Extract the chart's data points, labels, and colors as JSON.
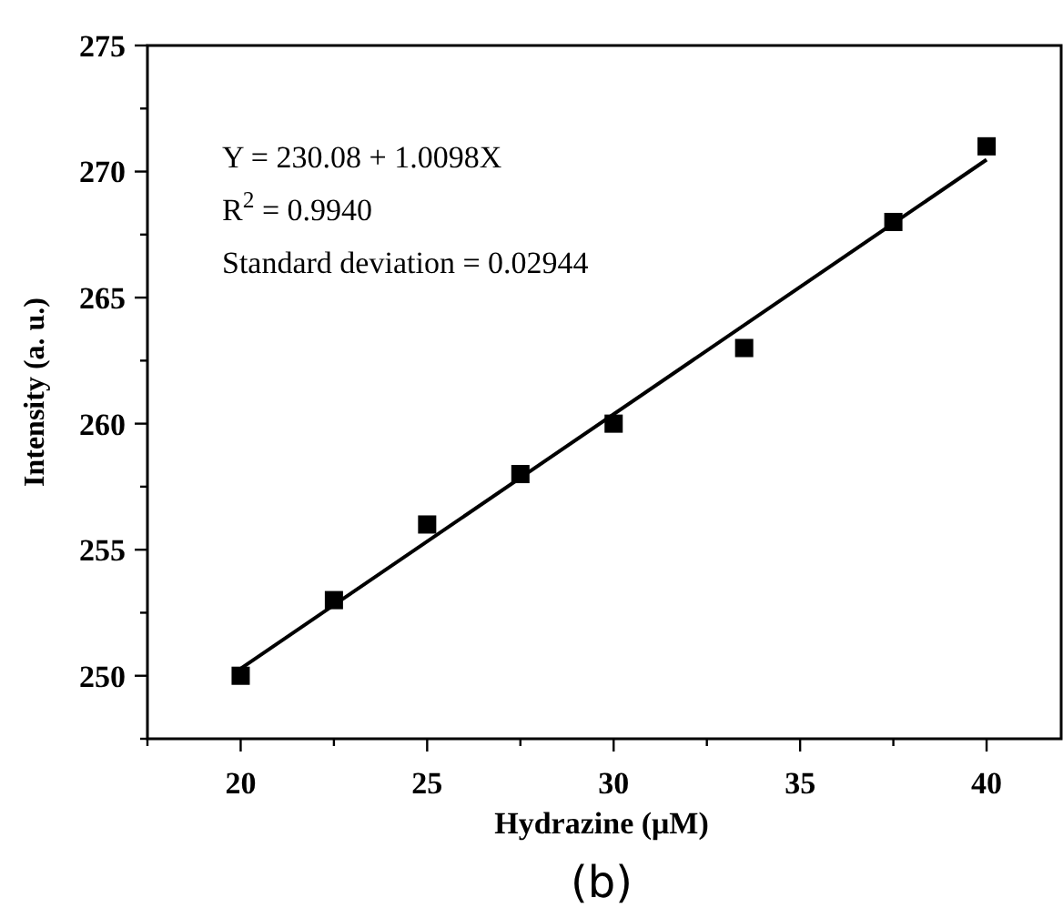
{
  "chart_data": {
    "type": "scatter",
    "xlabel": "Hydrazine (μM)",
    "ylabel": "Intensity (a. u.)",
    "xlim": [
      17.5,
      42
    ],
    "ylim": [
      247.5,
      275
    ],
    "xticks": [
      {
        "value": 17.5,
        "label": null
      },
      20,
      {
        "value": 22.5,
        "label": null
      },
      25,
      {
        "value": 27.5,
        "label": null
      },
      30,
      {
        "value": 32.5,
        "label": null
      },
      35,
      {
        "value": 37.5,
        "label": null
      },
      40
    ],
    "yticks": [
      {
        "value": 247.5,
        "label": null
      },
      250,
      {
        "value": 252.5,
        "label": null
      },
      255,
      {
        "value": 257.5,
        "label": null
      },
      260,
      {
        "value": 262.5,
        "label": null
      },
      265,
      {
        "value": 267.5,
        "label": null
      },
      270,
      {
        "value": 272.5,
        "label": null
      },
      275
    ],
    "grid": false,
    "series": [
      {
        "color": "#000000",
        "marker": "square",
        "x": [
          20,
          22.5,
          25,
          27.5,
          30,
          33.5,
          37.5,
          40
        ],
        "values": [
          250,
          253,
          256,
          258,
          260,
          263,
          268,
          271
        ]
      },
      {
        "type": "line",
        "color": "#000000",
        "marker": "none",
        "line_style": "solid",
        "x": [
          20,
          40
        ],
        "values": [
          250.28,
          270.47
        ]
      }
    ],
    "annotations": [
      "Y = 230.08 + 1.0098X",
      "R$^{2}$ = 0.9940",
      "Standard deviation = 0.02944",
      "(b)"
    ]
  }
}
